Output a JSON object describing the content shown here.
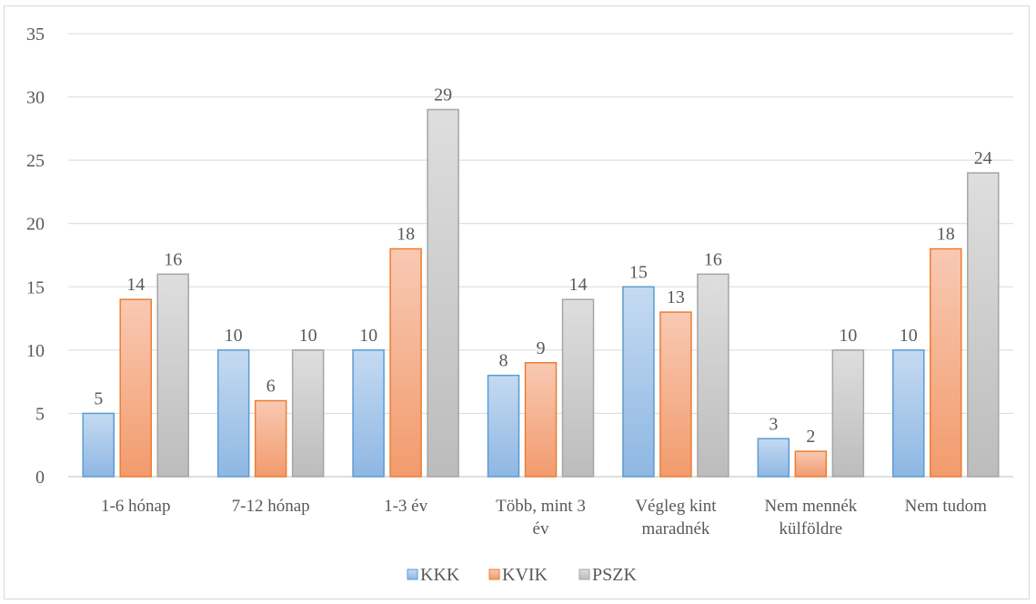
{
  "chart_data": {
    "type": "bar",
    "categories": [
      [
        "1-6 hónap"
      ],
      [
        "7-12 hónap"
      ],
      [
        "1-3 év"
      ],
      [
        "Több, mint 3",
        "év"
      ],
      [
        "Végleg kint",
        "maradnék"
      ],
      [
        "Nem mennék",
        "külföldre"
      ],
      [
        "Nem tudom"
      ]
    ],
    "series": [
      {
        "name": "KKK",
        "values": [
          5,
          10,
          10,
          8,
          15,
          3,
          10
        ],
        "color": "#5b9bd5"
      },
      {
        "name": "KVIK",
        "values": [
          14,
          6,
          18,
          9,
          13,
          2,
          18
        ],
        "color": "#ed7d31"
      },
      {
        "name": "PSZK",
        "values": [
          16,
          10,
          29,
          14,
          16,
          10,
          24
        ],
        "color": "#a5a5a5"
      }
    ],
    "y_ticks": [
      0,
      5,
      10,
      15,
      20,
      25,
      30,
      35
    ],
    "ylim": [
      0,
      35
    ],
    "grid": true,
    "legend_position": "bottom"
  }
}
